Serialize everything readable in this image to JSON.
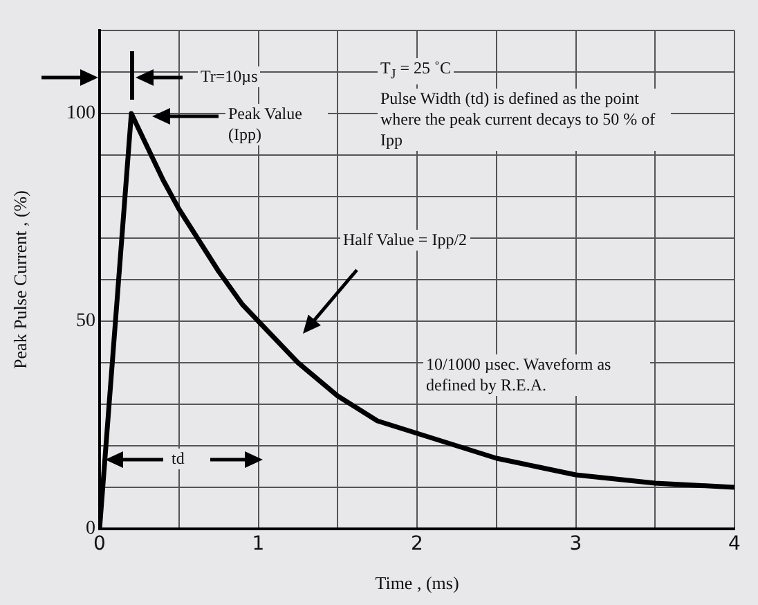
{
  "chart_data": {
    "type": "line",
    "xlabel": "Time , (ms)",
    "ylabel": "Peak Pulse Current , (%)",
    "x": [
      0,
      0.2,
      0.3,
      0.4,
      0.5,
      0.6,
      0.75,
      0.9,
      1,
      1.25,
      1.5,
      1.75,
      2,
      2.25,
      2.5,
      2.75,
      3,
      3.25,
      3.5,
      3.75,
      4
    ],
    "series": [
      {
        "color": "#000000",
        "values": [
          0,
          100,
          92,
          84,
          77,
          71,
          62,
          54,
          50,
          40,
          32,
          26,
          23,
          20,
          17,
          15,
          13,
          12,
          11,
          10.5,
          10
        ]
      }
    ],
    "xlim": [
      0,
      4
    ],
    "xticks": [
      0,
      {
        "value": 0.5,
        "label": null
      },
      1,
      {
        "value": 1.5,
        "label": null
      },
      2,
      {
        "value": 2.5,
        "label": null
      },
      3,
      {
        "value": 3.5,
        "label": null
      },
      4
    ],
    "ylim": [
      0,
      120
    ],
    "yticks": [
      0,
      {
        "value": 10,
        "label": null
      },
      {
        "value": 20,
        "label": null
      },
      {
        "value": 30,
        "label": null
      },
      {
        "value": 40,
        "label": null
      },
      50,
      {
        "value": 60,
        "label": null
      },
      {
        "value": 70,
        "label": null
      },
      {
        "value": 80,
        "label": null
      },
      {
        "value": 90,
        "label": null
      },
      100,
      {
        "value": 110,
        "label": null
      },
      {
        "value": 120,
        "label": null
      }
    ],
    "grid": true,
    "legend": false,
    "marker": "none",
    "line_style": "solid",
    "annotations": [
      "Tr=10µs",
      "Peak Value (Ipp)",
      "T$_{J}$ = 25 ˚C",
      "Pulse Width (td) is defined as the point where the peak current decays to 50 % of Ipp",
      "Half Value = Ipp/2",
      "10/1000 µsec. Waveform as defined by R.E.A.",
      "td"
    ]
  }
}
